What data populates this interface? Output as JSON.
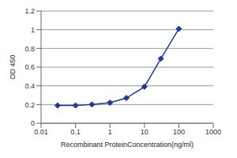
{
  "chart_data": {
    "type": "line",
    "x_label": "Recombinant ProteinConcentration(ng/ml)",
    "y_label": "OD 450",
    "x": [
      0.03,
      0.1,
      0.3,
      1,
      3,
      10,
      30,
      100
    ],
    "values": [
      0.19,
      0.19,
      0.2,
      0.22,
      0.27,
      0.39,
      0.69,
      1.01
    ],
    "color": "#1f3a93",
    "marker": "diamond",
    "log": "x",
    "xlim": [
      0.01,
      1000
    ],
    "xticks": [
      0.01,
      0.1,
      1,
      10,
      100,
      1000
    ],
    "ylim": [
      0,
      1.2
    ],
    "yticks": [
      0,
      0.2,
      0.4,
      0.6,
      0.8,
      1,
      1.2
    ],
    "grid": true
  }
}
